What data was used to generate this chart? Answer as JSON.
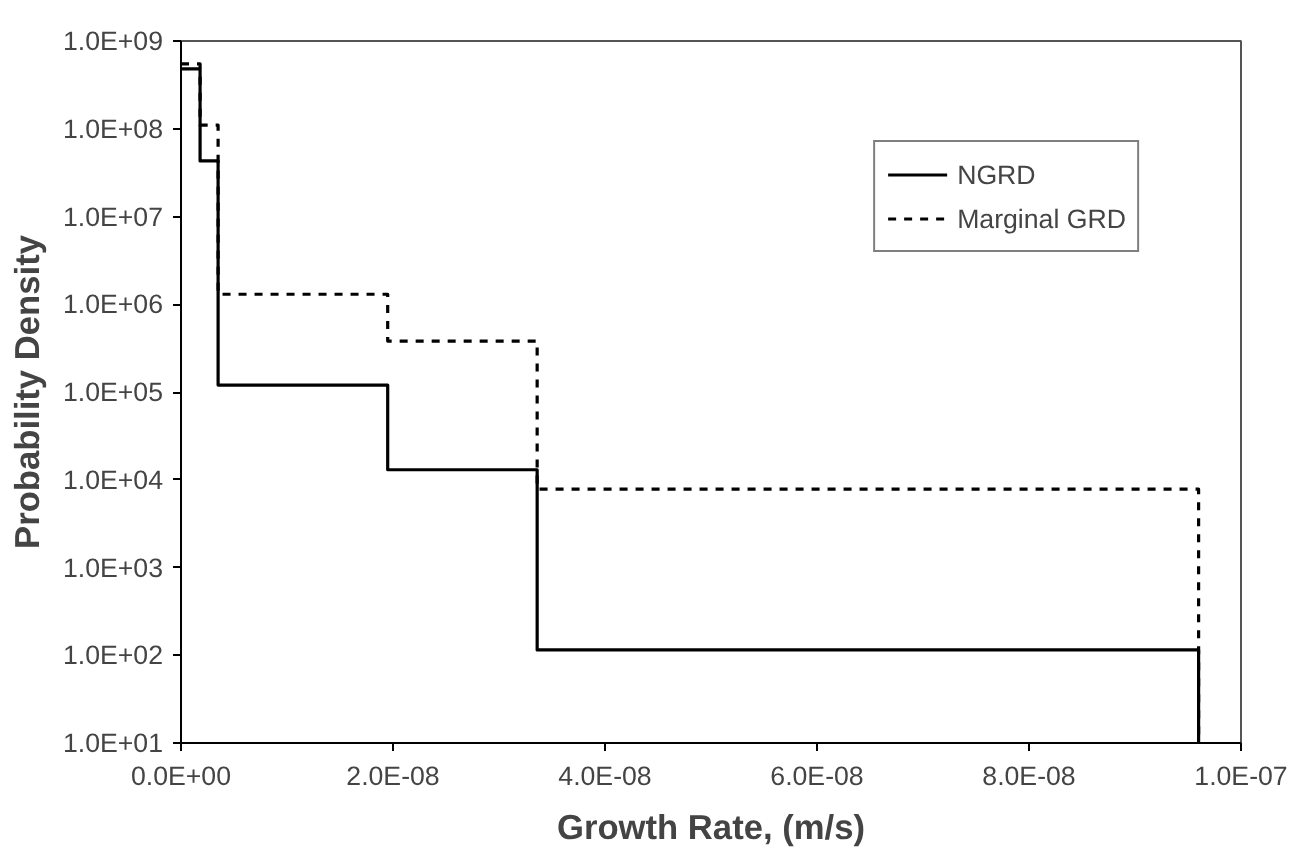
{
  "chart_data": {
    "type": "step",
    "xlabel": "Growth Rate, (m/s)",
    "ylabel": "Probability Density",
    "log": "y",
    "legend": "top right",
    "grid": false,
    "marker": "none",
    "xlim": [
      0,
      1e-07
    ],
    "ylim": [
      10,
      1000000000.0
    ],
    "xticks": [
      {
        "value": 0,
        "label": "0.0E+00"
      },
      {
        "value": 2e-08,
        "label": "2.0E-08"
      },
      {
        "value": 4e-08,
        "label": "4.0E-08"
      },
      {
        "value": 6e-08,
        "label": "6.0E-08"
      },
      {
        "value": 8e-08,
        "label": "8.0E-08"
      },
      {
        "value": 1e-07,
        "label": "1.0E-07"
      }
    ],
    "yticks": [
      {
        "value": 10,
        "label": "1.0E+01"
      },
      {
        "value": 100,
        "label": "1.0E+02"
      },
      {
        "value": 1000,
        "label": "1.0E+03"
      },
      {
        "value": 10000,
        "label": "1.0E+04"
      },
      {
        "value": 100000,
        "label": "1.0E+05"
      },
      {
        "value": 1000000,
        "label": "1.0E+06"
      },
      {
        "value": 10000000,
        "label": "1.0E+07"
      },
      {
        "value": 100000000,
        "label": "1.0E+08"
      },
      {
        "value": 1000000000,
        "label": "1.0E+09"
      }
    ],
    "series": [
      {
        "name": "NGRD",
        "color": "#000000",
        "line_style": "solid",
        "x": [
          0,
          1.8e-09,
          3.5e-09,
          1.95e-08,
          3.36e-08,
          9.6e-08
        ],
        "values": [
          480000000.0,
          43000000.0,
          120000.0,
          13000.0,
          115,
          10
        ]
      },
      {
        "name": "Marginal GRD",
        "color": "#000000",
        "line_style": "dashed",
        "x": [
          0,
          1.8e-09,
          3.5e-09,
          1.95e-08,
          3.36e-08,
          9.6e-08
        ],
        "values": [
          550000000.0,
          110000000.0,
          1300000.0,
          380000.0,
          7800.0,
          10
        ]
      }
    ]
  }
}
